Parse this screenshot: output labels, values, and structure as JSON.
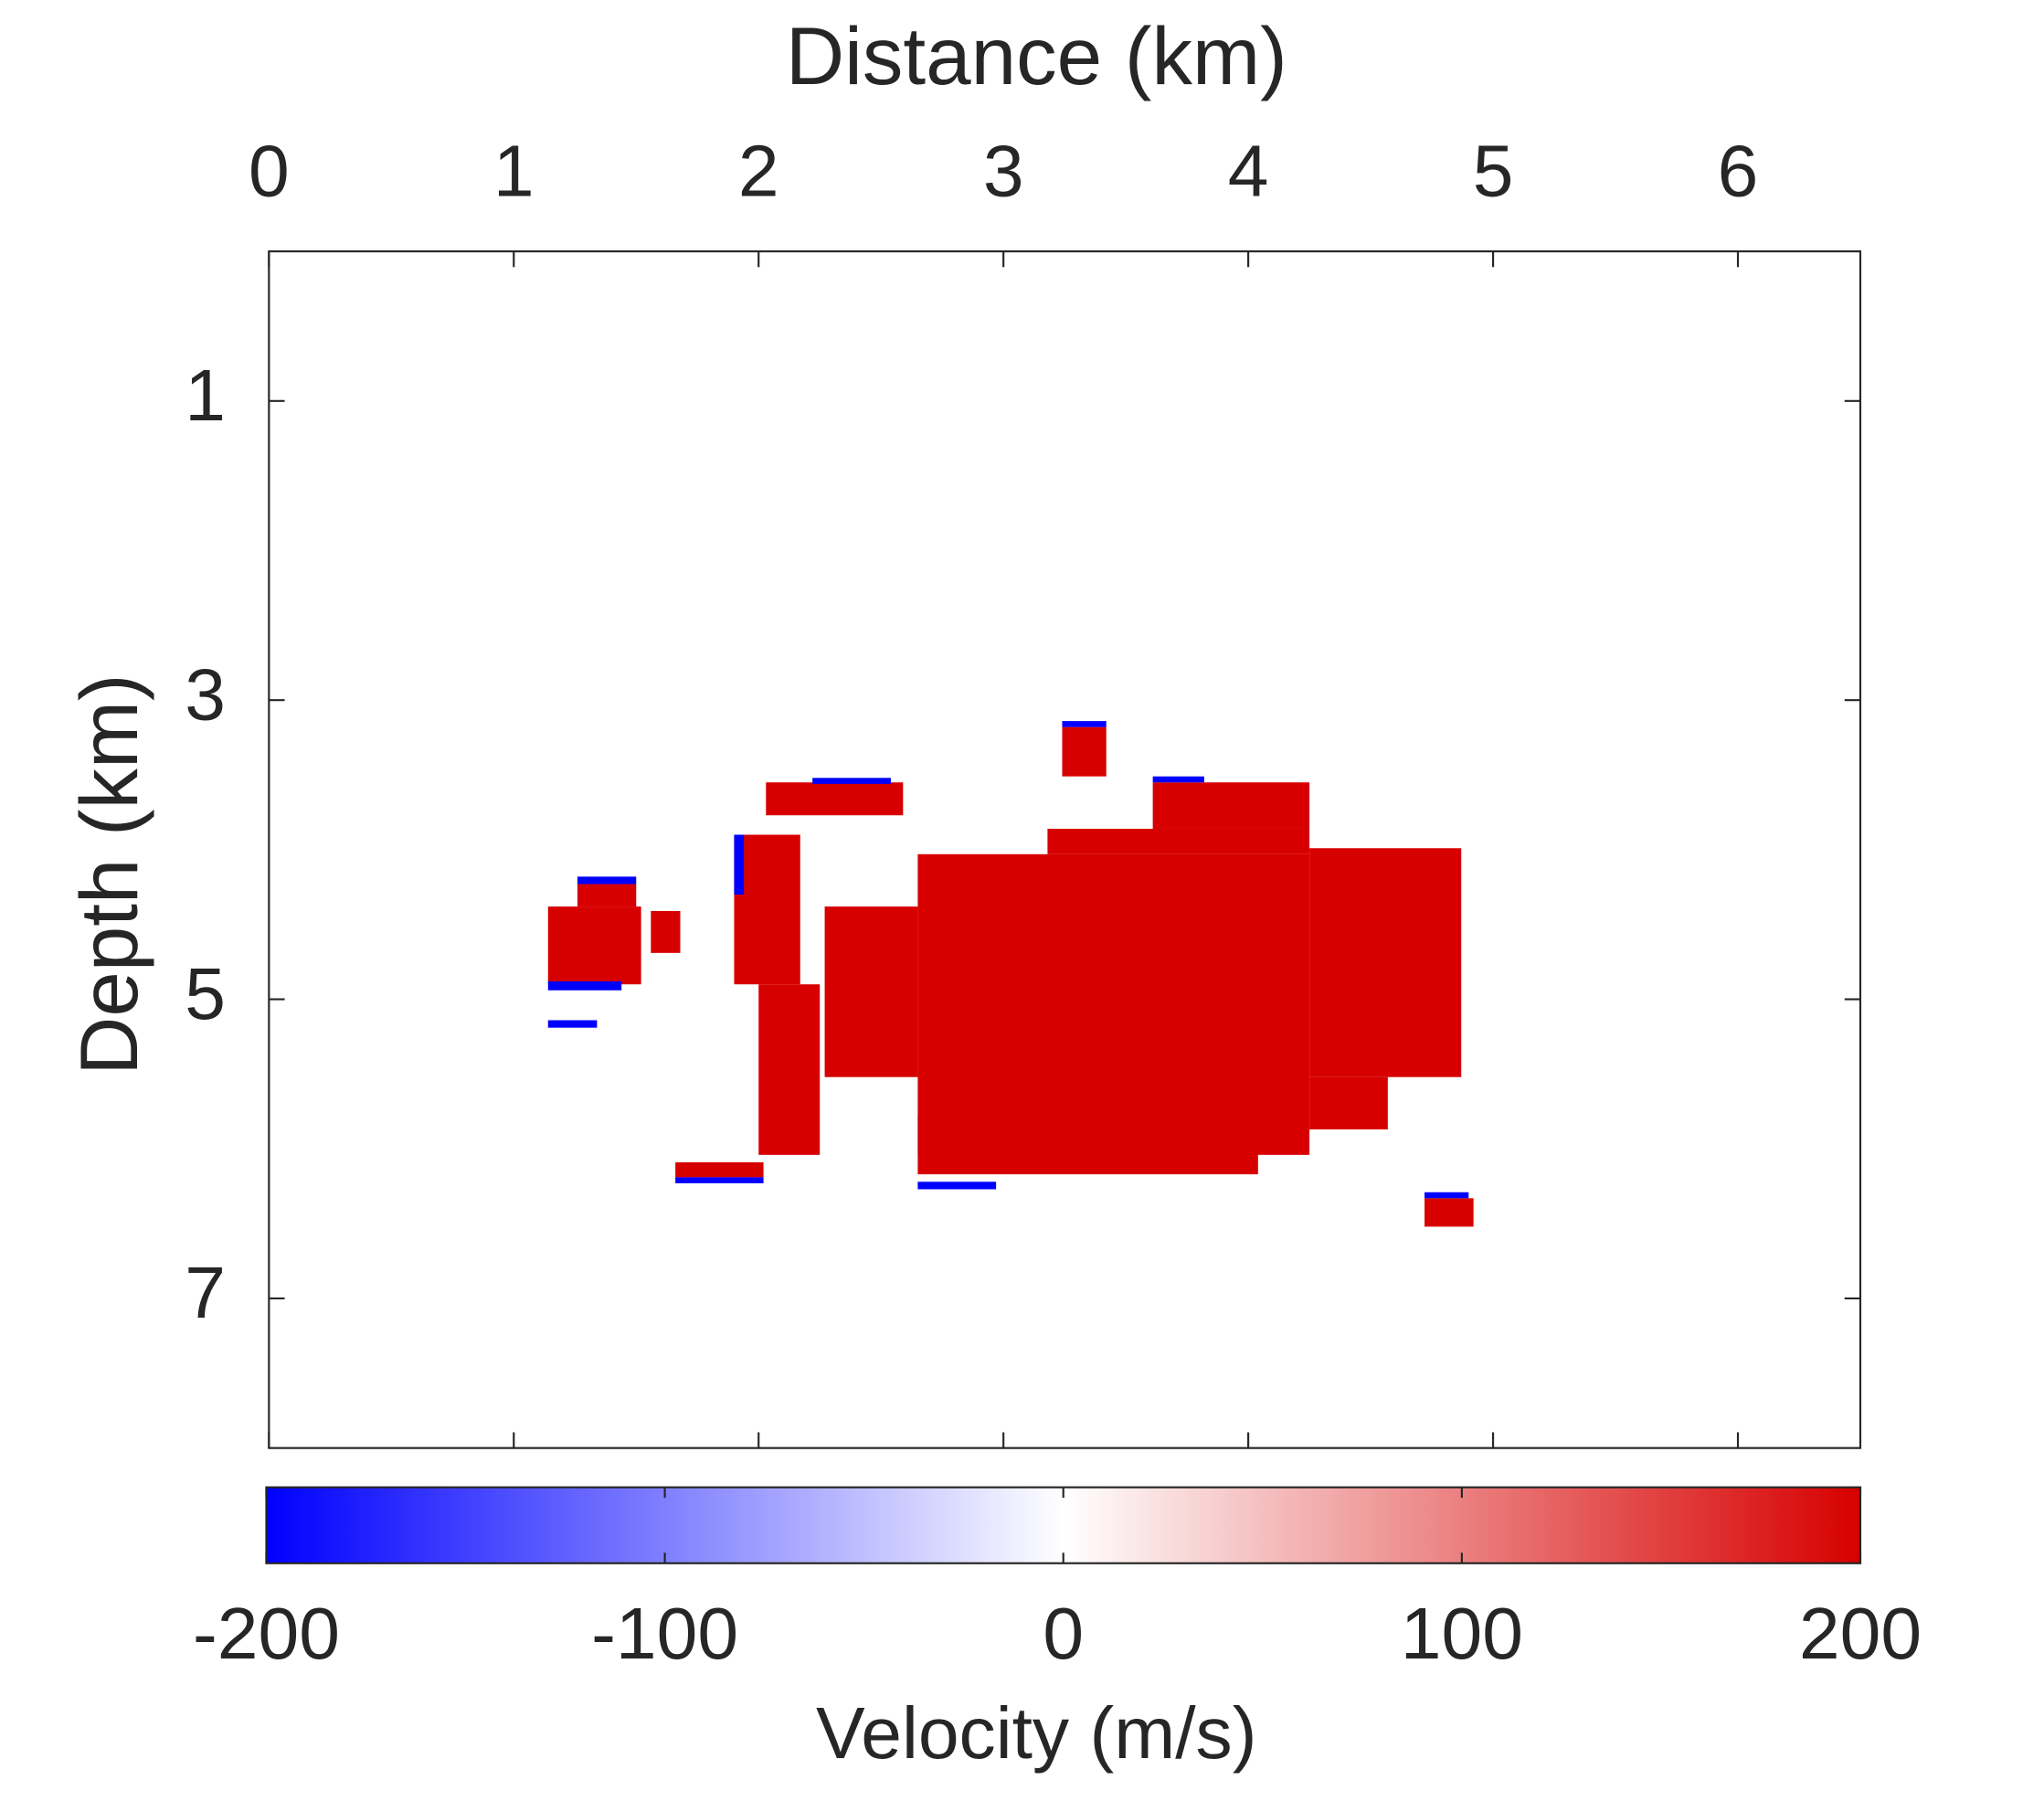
{
  "chart_data": {
    "type": "heatmap",
    "xlabel": "Distance (km)",
    "ylabel": "Depth (km)",
    "colorbar_label": "Velocity (m/s)",
    "xlim": [
      0,
      6.5
    ],
    "xticks": [
      0,
      1,
      2,
      3,
      4,
      5,
      6
    ],
    "ylim": [
      0,
      8
    ],
    "yticks": [
      1,
      3,
      5,
      7
    ],
    "y_reversed": true,
    "clim": [
      -200,
      200
    ],
    "cticks": [
      -200,
      -100,
      0,
      100,
      200
    ],
    "colormap": [
      "#0000ff",
      "#ffffff",
      "#d70000"
    ],
    "regions": [
      {
        "x": [
          2.65,
          4.25
        ],
        "z": [
          4.03,
          6.04
        ],
        "value": 200
      },
      {
        "x": [
          3.18,
          4.25
        ],
        "z": [
          3.86,
          4.03
        ],
        "value": 200
      },
      {
        "x": [
          3.61,
          4.25
        ],
        "z": [
          3.55,
          3.86
        ],
        "value": 200
      },
      {
        "x": [
          4.25,
          4.87
        ],
        "z": [
          3.99,
          5.52
        ],
        "value": 200
      },
      {
        "x": [
          2.27,
          2.65
        ],
        "z": [
          4.38,
          5.52
        ],
        "value": 200
      },
      {
        "x": [
          2.65,
          4.04
        ],
        "z": [
          5.78,
          6.17
        ],
        "value": 200
      },
      {
        "x": [
          4.25,
          4.57
        ],
        "z": [
          5.52,
          5.87
        ],
        "value": 200
      },
      {
        "x": [
          1.9,
          2.17
        ],
        "z": [
          3.9,
          4.9
        ],
        "value": 200
      },
      {
        "x": [
          2.0,
          2.25
        ],
        "z": [
          4.9,
          6.04
        ],
        "value": 200
      },
      {
        "x": [
          2.03,
          2.59
        ],
        "z": [
          3.55,
          3.77
        ],
        "value": 200
      },
      {
        "x": [
          1.14,
          1.52
        ],
        "z": [
          4.38,
          4.9
        ],
        "value": 200
      },
      {
        "x": [
          1.26,
          1.5
        ],
        "z": [
          4.23,
          4.38
        ],
        "value": 200
      },
      {
        "x": [
          1.56,
          1.68
        ],
        "z": [
          4.41,
          4.69
        ],
        "value": 200
      },
      {
        "x": [
          1.66,
          2.02
        ],
        "z": [
          6.09,
          6.19
        ],
        "value": 200
      },
      {
        "x": [
          3.24,
          3.42
        ],
        "z": [
          3.18,
          3.51
        ],
        "value": 200
      },
      {
        "x": [
          4.72,
          4.92
        ],
        "z": [
          6.33,
          6.52
        ],
        "value": 200
      },
      {
        "x": [
          1.26,
          1.5
        ],
        "z": [
          4.18,
          4.23
        ],
        "value": -200
      },
      {
        "x": [
          1.14,
          1.44
        ],
        "z": [
          4.88,
          4.94
        ],
        "value": -200
      },
      {
        "x": [
          1.14,
          1.34
        ],
        "z": [
          5.14,
          5.19
        ],
        "value": -200
      },
      {
        "x": [
          2.65,
          2.97
        ],
        "z": [
          6.22,
          6.27
        ],
        "value": -200
      },
      {
        "x": [
          1.66,
          2.02
        ],
        "z": [
          6.19,
          6.23
        ],
        "value": -200
      },
      {
        "x": [
          4.72,
          4.9
        ],
        "z": [
          6.29,
          6.33
        ],
        "value": -200
      },
      {
        "x": [
          2.22,
          2.54
        ],
        "z": [
          3.52,
          3.56
        ],
        "value": -200
      },
      {
        "x": [
          3.61,
          3.82
        ],
        "z": [
          3.51,
          3.55
        ],
        "value": -200
      },
      {
        "x": [
          3.24,
          3.42
        ],
        "z": [
          3.14,
          3.18
        ],
        "value": -200
      },
      {
        "x": [
          1.9,
          1.94
        ],
        "z": [
          3.9,
          4.3
        ],
        "value": -200
      }
    ]
  }
}
